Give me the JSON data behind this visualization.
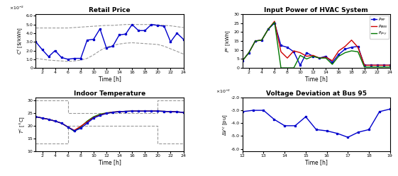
{
  "retail_price": {
    "title": "Retail Price",
    "xlabel": "Time [h]",
    "time": [
      1,
      2,
      3,
      4,
      5,
      6,
      7,
      8,
      9,
      10,
      11,
      12,
      13,
      14,
      15,
      16,
      17,
      18,
      19,
      20,
      21,
      22,
      23,
      24
    ],
    "price": [
      3.0,
      2.1,
      1.3,
      2.0,
      1.2,
      1.0,
      1.1,
      1.1,
      3.2,
      3.3,
      4.5,
      2.3,
      2.5,
      3.8,
      3.9,
      5.0,
      4.3,
      4.3,
      5.0,
      4.9,
      4.8,
      3.0,
      4.0,
      3.3
    ],
    "upper_bound": [
      4.6,
      4.6,
      4.6,
      4.6,
      4.6,
      4.6,
      4.65,
      4.7,
      4.75,
      4.8,
      4.85,
      4.9,
      4.9,
      4.95,
      5.0,
      5.0,
      5.0,
      5.0,
      5.0,
      4.95,
      4.9,
      4.85,
      4.75,
      4.65
    ],
    "lower_bound": [
      1.1,
      1.0,
      0.9,
      0.85,
      0.8,
      0.75,
      0.8,
      0.9,
      1.1,
      1.5,
      2.0,
      2.4,
      2.6,
      2.75,
      2.85,
      2.9,
      2.85,
      2.8,
      2.75,
      2.7,
      2.5,
      2.2,
      1.9,
      1.6
    ],
    "color": "#0000CC",
    "bound_color": "#999999"
  },
  "hvac_power": {
    "title": "Input Power of HVAC System",
    "xlabel": "Time [h]",
    "time": [
      1,
      2,
      3,
      4,
      5,
      6,
      7,
      8,
      9,
      10,
      11,
      12,
      13,
      14,
      15,
      16,
      17,
      18,
      19,
      20,
      21,
      22,
      23,
      24
    ],
    "P_MP": [
      4.0,
      8.5,
      15.0,
      15.5,
      21.5,
      25.0,
      12.5,
      11.5,
      9.0,
      1.5,
      8.5,
      6.5,
      5.5,
      6.5,
      3.0,
      7.5,
      10.5,
      11.5,
      12.0,
      1.5,
      1.5,
      1.5,
      1.5,
      1.5
    ],
    "P_ANN": [
      4.0,
      8.5,
      15.0,
      15.5,
      21.5,
      26.0,
      9.0,
      5.5,
      9.5,
      8.5,
      6.5,
      7.0,
      5.5,
      6.0,
      4.0,
      9.5,
      12.0,
      15.5,
      11.5,
      1.5,
      1.5,
      1.5,
      1.5,
      1.5
    ],
    "P_phy": [
      4.0,
      8.5,
      15.0,
      15.5,
      21.5,
      25.5,
      0.0,
      0.0,
      0.0,
      7.0,
      5.0,
      6.5,
      5.5,
      5.5,
      2.0,
      6.5,
      8.5,
      9.5,
      9.0,
      0.5,
      0.5,
      0.5,
      0.5,
      0.5
    ],
    "colors": {
      "MP": "#0000CC",
      "ANN": "#CC0000",
      "phy": "#007700"
    }
  },
  "indoor_temp": {
    "title": "Indoor Temperature",
    "xlabel": "Time [h]",
    "time": [
      1,
      2,
      3,
      4,
      5,
      6,
      7,
      8,
      9,
      10,
      11,
      12,
      13,
      14,
      15,
      16,
      17,
      18,
      19,
      20,
      21,
      22,
      23,
      24
    ],
    "T_MP": [
      23.5,
      23.0,
      22.5,
      21.8,
      21.0,
      19.5,
      18.0,
      19.0,
      21.0,
      23.0,
      24.0,
      24.8,
      25.2,
      25.5,
      25.6,
      25.7,
      25.7,
      25.7,
      25.7,
      25.7,
      25.6,
      25.5,
      25.4,
      25.2
    ],
    "T_ANN": [
      23.5,
      23.0,
      22.5,
      21.8,
      21.0,
      19.5,
      18.2,
      19.8,
      21.5,
      23.2,
      24.2,
      24.9,
      25.3,
      25.5,
      25.6,
      25.7,
      25.7,
      25.7,
      25.7,
      25.7,
      25.6,
      25.5,
      25.4,
      25.2
    ],
    "T_phy": [
      23.5,
      23.0,
      22.5,
      21.8,
      21.0,
      19.5,
      17.8,
      19.5,
      21.8,
      23.5,
      24.5,
      25.0,
      25.3,
      25.5,
      25.6,
      25.7,
      25.7,
      25.7,
      25.7,
      25.7,
      25.6,
      25.5,
      25.4,
      25.2
    ],
    "upper_x": [
      1,
      6,
      6,
      7,
      7,
      20,
      20,
      21,
      21,
      24
    ],
    "upper_y": [
      30,
      30,
      25,
      25,
      25,
      25,
      30,
      30,
      30,
      30
    ],
    "lower_x": [
      1,
      6,
      6,
      7,
      7,
      20,
      20,
      21,
      21,
      24
    ],
    "lower_y": [
      13,
      13,
      20,
      20,
      20,
      20,
      13,
      13,
      13,
      13
    ],
    "colors": {
      "MP": "#0000CC",
      "ANN": "#CC0000",
      "phy": "#007700"
    },
    "bound_color": "#999999"
  },
  "voltage_dev": {
    "title": "Voltage Deviation at Bus 95",
    "xlabel": "Time [h]",
    "time": [
      12,
      12.5,
      13,
      13.5,
      14,
      14.5,
      15,
      15.5,
      16,
      16.5,
      17,
      17.5,
      18,
      18.5,
      19
    ],
    "dV": [
      -3.1,
      -3.0,
      -3.0,
      -3.7,
      -4.2,
      -4.2,
      -3.5,
      -4.5,
      -4.6,
      -4.8,
      -5.1,
      -4.7,
      -4.5,
      -3.1,
      -2.9
    ],
    "color": "#0000CC"
  }
}
